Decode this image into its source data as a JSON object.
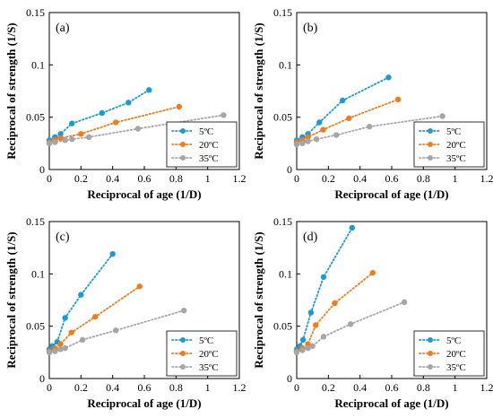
{
  "chart_data": [
    {
      "type": "scatter",
      "panel_label": "(a)",
      "xlabel": "Reciprocal of age (1/D)",
      "ylabel": "Reciprocal of strength (1/S)",
      "xlim": [
        0,
        1.2
      ],
      "ylim": [
        0,
        0.15
      ],
      "xticks": [
        "0",
        "0.2",
        "0.4",
        "0.6",
        "0.8",
        "1",
        "1.2"
      ],
      "yticks": [
        "0",
        "0.05",
        "0.1",
        "0.15"
      ],
      "legend_position": "bottom-right",
      "series": [
        {
          "name": "5ºC",
          "color": "#1a9ad6",
          "x": [
            0.0,
            0.036,
            0.071,
            0.143,
            0.333,
            0.5,
            0.63
          ],
          "y": [
            0.028,
            0.031,
            0.034,
            0.044,
            0.054,
            0.064,
            0.076
          ]
        },
        {
          "name": "20ºC",
          "color": "#f07c1e",
          "x": [
            0.0,
            0.036,
            0.071,
            0.2,
            0.42,
            0.82
          ],
          "y": [
            0.026,
            0.028,
            0.03,
            0.034,
            0.045,
            0.06
          ]
        },
        {
          "name": "35ºC",
          "color": "#a6a6a6",
          "x": [
            0.0,
            0.036,
            0.1,
            0.143,
            0.25,
            0.56,
            1.1
          ],
          "y": [
            0.025,
            0.026,
            0.028,
            0.029,
            0.031,
            0.039,
            0.052
          ]
        }
      ]
    },
    {
      "type": "scatter",
      "panel_label": "(b)",
      "xlabel": "Reciprocal of age (1/D)",
      "ylabel": "Reciprocal of strength (1/S)",
      "xlim": [
        0,
        1.2
      ],
      "ylim": [
        0,
        0.15
      ],
      "xticks": [
        "0",
        "0.2",
        "0.4",
        "0.6",
        "0.8",
        "1",
        "1.2"
      ],
      "yticks": [
        "0",
        "0.05",
        "0.1",
        "0.15"
      ],
      "legend_position": "bottom-right",
      "series": [
        {
          "name": "5ºC",
          "color": "#1a9ad6",
          "x": [
            0.0,
            0.036,
            0.071,
            0.143,
            0.29,
            0.58
          ],
          "y": [
            0.028,
            0.031,
            0.034,
            0.045,
            0.066,
            0.088
          ]
        },
        {
          "name": "20ºC",
          "color": "#f07c1e",
          "x": [
            0.0,
            0.036,
            0.071,
            0.167,
            0.33,
            0.64
          ],
          "y": [
            0.026,
            0.028,
            0.031,
            0.038,
            0.049,
            0.067
          ]
        },
        {
          "name": "35ºC",
          "color": "#a6a6a6",
          "x": [
            0.0,
            0.036,
            0.071,
            0.125,
            0.25,
            0.46,
            0.92
          ],
          "y": [
            0.024,
            0.025,
            0.027,
            0.029,
            0.033,
            0.041,
            0.051
          ]
        }
      ]
    },
    {
      "type": "scatter",
      "panel_label": "(c)",
      "xlabel": "Reciprocal of age (1/D)",
      "ylabel": "Reciprocal of strength (1/S)",
      "xlim": [
        0,
        1.2
      ],
      "ylim": [
        0,
        0.15
      ],
      "xticks": [
        "0",
        "0.2",
        "0.4",
        "0.6",
        "0.8",
        "1",
        "1.2"
      ],
      "yticks": [
        "0",
        "0.05",
        "0.1",
        "0.15"
      ],
      "legend_position": "bottom-right",
      "series": [
        {
          "name": "5ºC",
          "color": "#1a9ad6",
          "x": [
            0.0,
            0.02,
            0.05,
            0.1,
            0.2,
            0.4
          ],
          "y": [
            0.028,
            0.031,
            0.035,
            0.058,
            0.08,
            0.119
          ]
        },
        {
          "name": "20ºC",
          "color": "#f07c1e",
          "x": [
            0.0,
            0.036,
            0.071,
            0.14,
            0.29,
            0.57
          ],
          "y": [
            0.026,
            0.029,
            0.033,
            0.044,
            0.059,
            0.088
          ]
        },
        {
          "name": "35ºC",
          "color": "#a6a6a6",
          "x": [
            0.0,
            0.036,
            0.071,
            0.1,
            0.21,
            0.42,
            0.85
          ],
          "y": [
            0.025,
            0.026,
            0.028,
            0.029,
            0.037,
            0.046,
            0.065
          ]
        }
      ]
    },
    {
      "type": "scatter",
      "panel_label": "(d)",
      "xlabel": "Reciprocal of age (1/D)",
      "ylabel": "Reciprocal of strength (1/S)",
      "xlim": [
        0,
        1.2
      ],
      "ylim": [
        0,
        0.15
      ],
      "xticks": [
        "0",
        "0.2",
        "0.4",
        "0.6",
        "0.8",
        "1",
        "1.2"
      ],
      "yticks": [
        "0",
        "0.05",
        "0.1",
        "0.15"
      ],
      "legend_position": "bottom-right",
      "series": [
        {
          "name": "5ºC",
          "color": "#1a9ad6",
          "x": [
            0.0,
            0.02,
            0.04,
            0.09,
            0.17,
            0.35
          ],
          "y": [
            0.028,
            0.031,
            0.037,
            0.063,
            0.097,
            0.144
          ]
        },
        {
          "name": "20ºC",
          "color": "#f07c1e",
          "x": [
            0.0,
            0.036,
            0.071,
            0.12,
            0.24,
            0.48
          ],
          "y": [
            0.026,
            0.029,
            0.033,
            0.051,
            0.072,
            0.101
          ]
        },
        {
          "name": "35ºC",
          "color": "#a6a6a6",
          "x": [
            0.0,
            0.036,
            0.071,
            0.1,
            0.17,
            0.34,
            0.68
          ],
          "y": [
            0.025,
            0.027,
            0.029,
            0.031,
            0.04,
            0.052,
            0.073
          ]
        }
      ]
    }
  ]
}
